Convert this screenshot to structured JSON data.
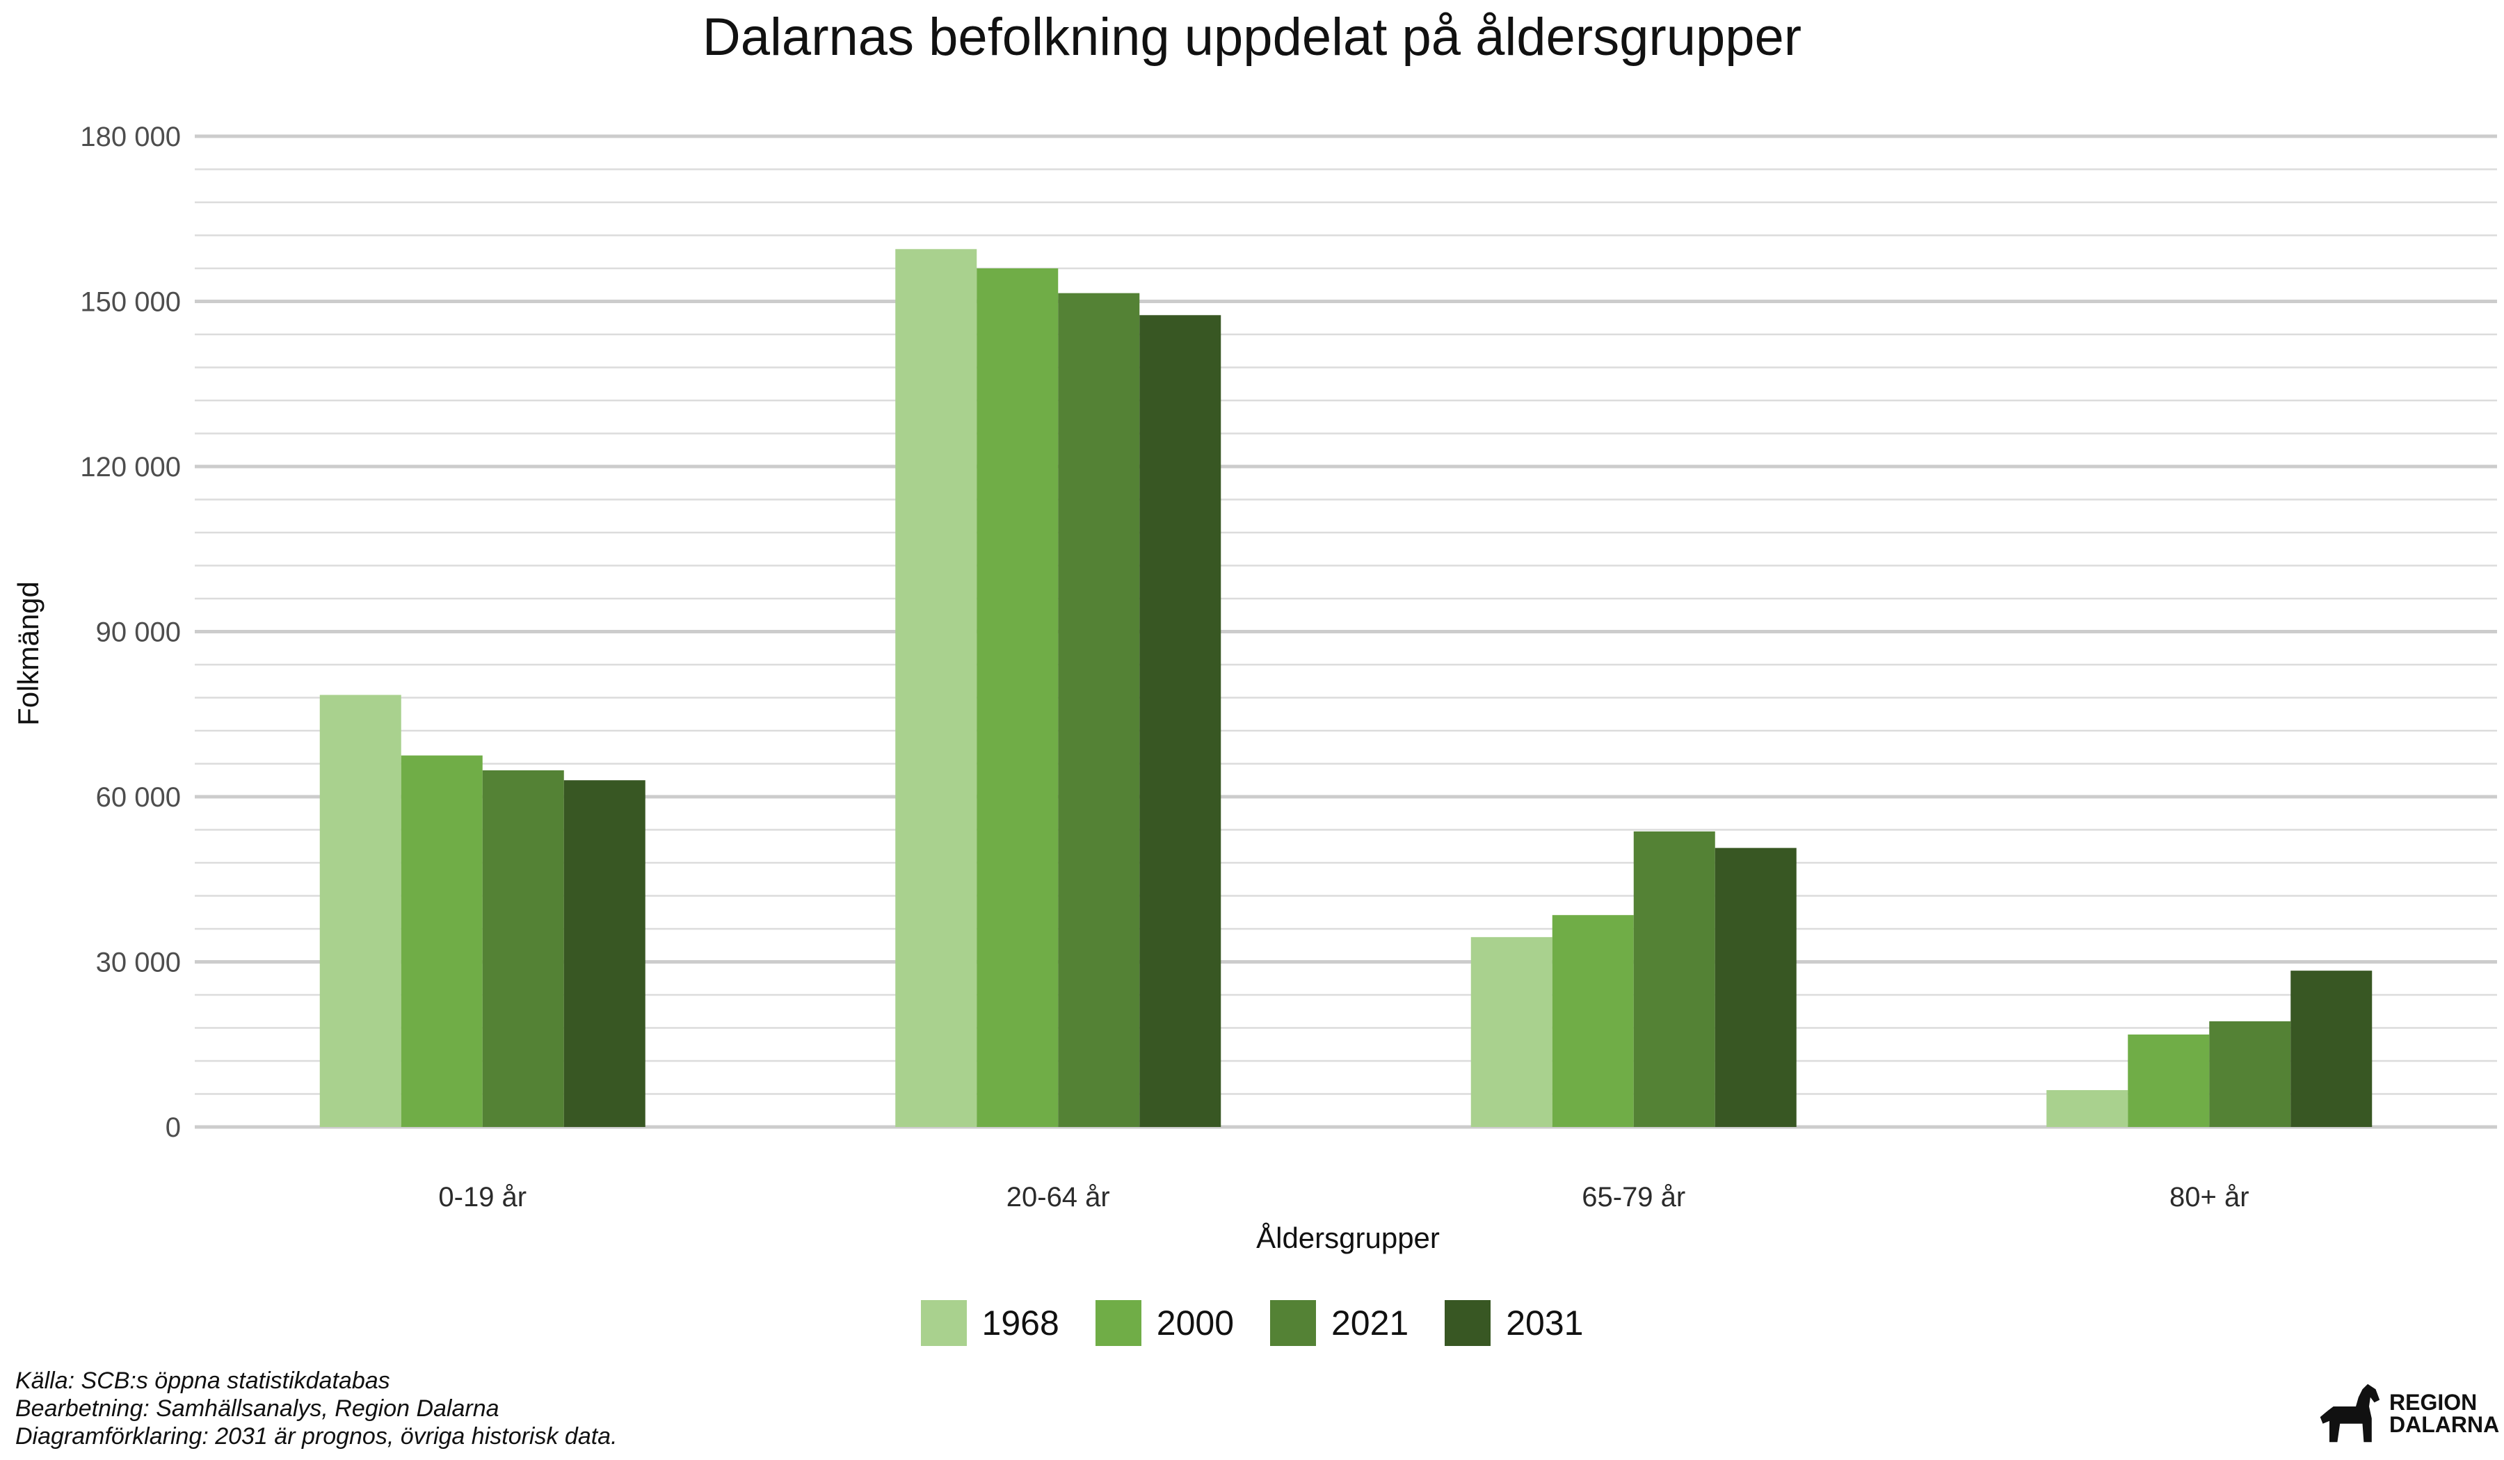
{
  "chart_data": {
    "type": "bar",
    "title": "Dalarnas befolkning uppdelat på åldersgrupper",
    "xlabel": "Åldersgrupper",
    "ylabel": "Folkmängd",
    "categories": [
      "0-19 år",
      "20-64 år",
      "65-79 år",
      "80+ år"
    ],
    "series": [
      {
        "name": "1968",
        "color": "#a9d18e",
        "values": [
          78500,
          159500,
          34500,
          6700
        ]
      },
      {
        "name": "2000",
        "color": "#70ad47",
        "values": [
          67500,
          156000,
          38500,
          16800
        ]
      },
      {
        "name": "2021",
        "color": "#548235",
        "values": [
          64800,
          151500,
          53700,
          19200
        ]
      },
      {
        "name": "2031",
        "color": "#385723",
        "values": [
          63000,
          147500,
          50700,
          28400
        ]
      }
    ],
    "ylim": [
      0,
      180000
    ],
    "yticks": [
      0,
      30000,
      60000,
      90000,
      120000,
      150000,
      180000
    ],
    "ytick_labels": [
      "0",
      "30 000",
      "60 000",
      "90 000",
      "120 000",
      "150 000",
      "180 000"
    ],
    "minor_step": 6000,
    "grid": true,
    "legend_position": "bottom"
  },
  "footnotes": [
    "Källa: SCB:s öppna statistikdatabas",
    "Bearbetning: Samhällsanalys, Region Dalarna",
    "Diagramförklaring: 2031 är prognos, övriga historisk data."
  ],
  "logo": {
    "line1": "REGION",
    "line2": "DALARNA",
    "icon": "dala-horse-icon"
  }
}
